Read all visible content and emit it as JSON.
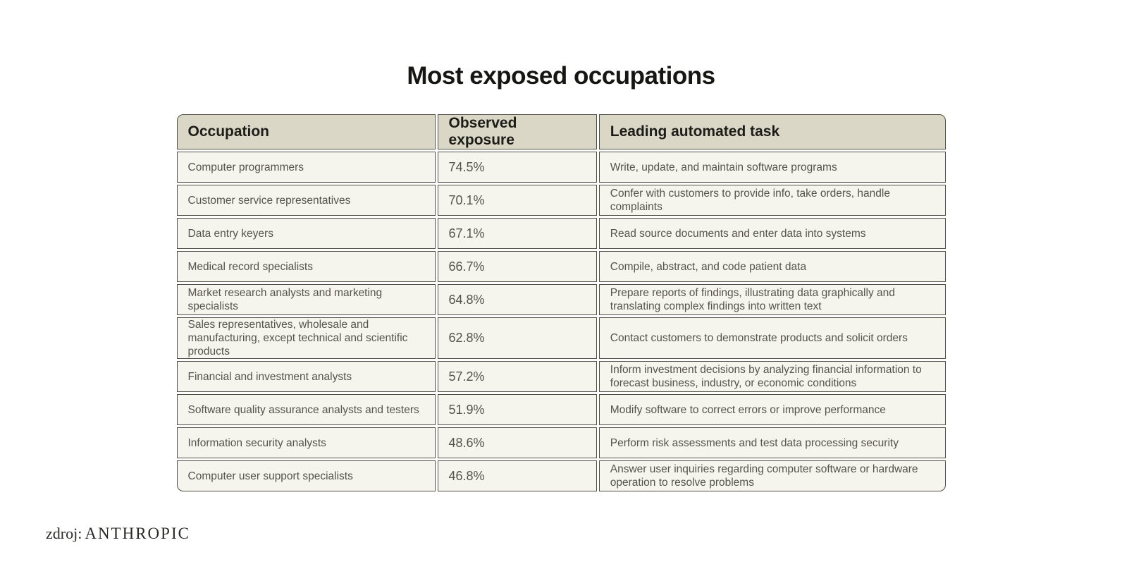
{
  "page": {
    "title": "Most exposed occupations",
    "source_prefix": "zdroj:",
    "source_name": "ANTHROPIC"
  },
  "colors": {
    "page_background": "#ffffff",
    "header_cell_background": "#dad7c7",
    "body_cell_background": "#f5f4ed",
    "cell_border": "#504f47",
    "title_text": "#161613",
    "body_text": "#55544b"
  },
  "table": {
    "headers": [
      "Occupation",
      "Observed exposure",
      "Leading automated task"
    ],
    "rows": [
      {
        "occupation": "Computer programmers",
        "exposure": "74.5%",
        "task": "Write, update, and maintain software programs"
      },
      {
        "occupation": "Customer service representatives",
        "exposure": "70.1%",
        "task": "Confer with customers to provide info, take orders, handle complaints"
      },
      {
        "occupation": "Data entry keyers",
        "exposure": "67.1%",
        "task": "Read source documents and enter data into systems"
      },
      {
        "occupation": "Medical record specialists",
        "exposure": "66.7%",
        "task": "Compile, abstract, and code patient data"
      },
      {
        "occupation": "Market research analysts and marketing specialists",
        "exposure": "64.8%",
        "task": "Prepare reports of findings, illustrating data graphically and translating complex findings into written text"
      },
      {
        "occupation": "Sales representatives, wholesale and manufacturing, except technical and scientific products",
        "exposure": "62.8%",
        "task": "Contact customers to demonstrate products and solicit orders"
      },
      {
        "occupation": "Financial and investment analysts",
        "exposure": "57.2%",
        "task": "Inform investment decisions by analyzing financial information to forecast business, industry, or economic conditions"
      },
      {
        "occupation": "Software quality assurance analysts and testers",
        "exposure": "51.9%",
        "task": "Modify software to correct errors or improve performance"
      },
      {
        "occupation": "Information security analysts",
        "exposure": "48.6%",
        "task": "Perform risk assessments and test data processing security"
      },
      {
        "occupation": "Computer user support specialists",
        "exposure": "46.8%",
        "task": "Answer user inquiries regarding computer software or hardware operation to resolve problems"
      }
    ]
  },
  "chart_data": {
    "type": "table",
    "title": "Most exposed occupations",
    "columns": [
      "Occupation",
      "Observed exposure",
      "Leading automated task"
    ],
    "categories": [
      "Computer programmers",
      "Customer service representatives",
      "Data entry keyers",
      "Medical record specialists",
      "Market research analysts and marketing specialists",
      "Sales representatives, wholesale and manufacturing, except technical and scientific products",
      "Financial and investment analysts",
      "Software quality assurance analysts and testers",
      "Information security analysts",
      "Computer user support specialists"
    ],
    "values": [
      74.5,
      70.1,
      67.1,
      66.7,
      64.8,
      62.8,
      57.2,
      51.9,
      48.6,
      46.8
    ],
    "value_unit": "%",
    "leading_automated_tasks": [
      "Write, update, and maintain software programs",
      "Confer with customers to provide info, take orders, handle complaints",
      "Read source documents and enter data into systems",
      "Compile, abstract, and code patient data",
      "Prepare reports of findings, illustrating data graphically and translating complex findings into written text",
      "Contact customers to demonstrate products and solicit orders",
      "Inform investment decisions by analyzing financial information to forecast business, industry, or economic conditions",
      "Modify software to correct errors or improve performance",
      "Perform risk assessments and test data processing security",
      "Answer user inquiries regarding computer software or hardware operation to resolve problems"
    ],
    "source": "zdroj: ANTHROPIC"
  }
}
